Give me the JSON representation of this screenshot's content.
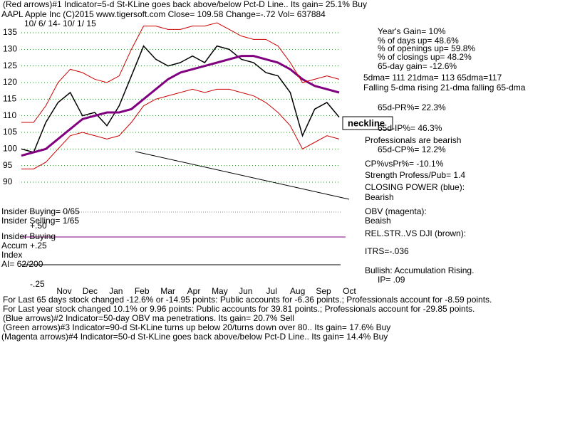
{
  "header": {
    "line1": "(Red arrows)#1 Indicator=5-d St-KLine goes back above/below Pct-D Line.. Its gain= 25.1% Buy",
    "line2": "AAPL   Apple Inc  (C)2015 www.tigersoft.com    Close= 109.58   Change=-.72  Vol=  637884",
    "dates": "10/ 6/ 14- 10/ 1/ 15"
  },
  "chart_data": {
    "type": "line",
    "ylim": [
      87,
      141
    ],
    "yticks": [
      135,
      130,
      125,
      120,
      115,
      110,
      105,
      100,
      95,
      90
    ],
    "grid": true,
    "month_labels": [
      "Nov",
      "Dec",
      "Jan",
      "Feb",
      "Mar",
      "Apr",
      "May",
      "Jun",
      "Jul",
      "Aug",
      "Sep",
      "Oct"
    ],
    "series": [
      {
        "name": "Price",
        "color": "#000000",
        "values": [
          100,
          99,
          108,
          114,
          117,
          110,
          111,
          107,
          113,
          122,
          131,
          127,
          125,
          126,
          128,
          126,
          131,
          130,
          127,
          126,
          123,
          122,
          117,
          104,
          112,
          114,
          109.58
        ]
      },
      {
        "name": "65dma",
        "color": "#800080",
        "values": [
          98,
          99,
          100,
          103,
          106,
          109,
          110,
          111,
          111,
          112,
          115,
          118,
          121,
          123,
          124,
          125,
          126,
          127,
          128,
          128,
          127,
          126,
          124,
          121,
          119,
          118,
          117
        ]
      },
      {
        "name": "Upper band",
        "color": "#cc0000",
        "values": [
          108,
          108,
          113,
          120,
          124,
          123,
          121,
          120,
          122,
          130,
          137,
          137,
          136,
          136,
          137,
          137,
          138,
          136,
          134,
          133,
          133,
          131,
          126,
          120,
          121,
          122,
          121
        ]
      },
      {
        "name": "Lower band",
        "color": "#cc0000",
        "values": [
          94,
          94,
          96,
          100,
          104,
          105,
          104,
          103,
          104,
          108,
          113,
          115,
          116,
          117,
          118,
          117,
          118,
          118,
          117,
          116,
          114,
          111,
          107,
          100,
          102,
          104,
          103
        ]
      }
    ],
    "annotation": "neckline"
  },
  "left_labels": [
    "Insider Buying= 0/65",
    "Insider Selling= 1/65",
    "+.50",
    "Insider Buying",
    "Accum +.25",
    "Index",
    "AI= 62/200",
    "-.25"
  ],
  "right_panel": [
    "Year's Gain= 10%",
    "% of days up= 48.6%",
    "% of openings up= 59.8%",
    "% of closings up= 48.2%",
    "65-day gain= -12.6%",
    "5dma= 111  21dma= 113  65dma=117",
    "Falling 5-dma  rising 21-dma  falling 65-dma",
    "65d-PR%= 22.3%",
    "65d-IP%= 46.3%",
    "Professionals are bearish",
    "65d-CP%= 12.2%",
    "CP%vsPr%= -10.1%",
    "Strength Profess/Pub= 1.4",
    "CLOSING POWER (blue):",
    "Bearish",
    "OBV (magenta):",
    "Beaish",
    "REL.STR..VS DJI (brown):",
    "ITRS=-.036",
    "Bullish: Accumulation Rising.",
    "IP=  .09"
  ],
  "footer": [
    "For Last 65 days stock changed -12.6% or -14.95 points:  Public accounts for -6.36 points.;  Professionals account for -8.59 points.",
    "For Last year stock changed  10.1% or  9.96 points:  Public accounts for  39.81 points.;  Professionals account for -29.85 points.",
    "(Blue arrows)#2 Indicator=50-day OBV ma penetrations. Its gain= 20.7% Sell",
    "(Green arrows)#3 Indicator=90-d St-KLine turns up below 20/turns down over 80.. Its gain= 17.6% Buy",
    "(Magenta arrows)#4 Indicator=50-d St-KLine goes back above/below Pct-D Line.. Its gain= 14.4% Buy"
  ]
}
